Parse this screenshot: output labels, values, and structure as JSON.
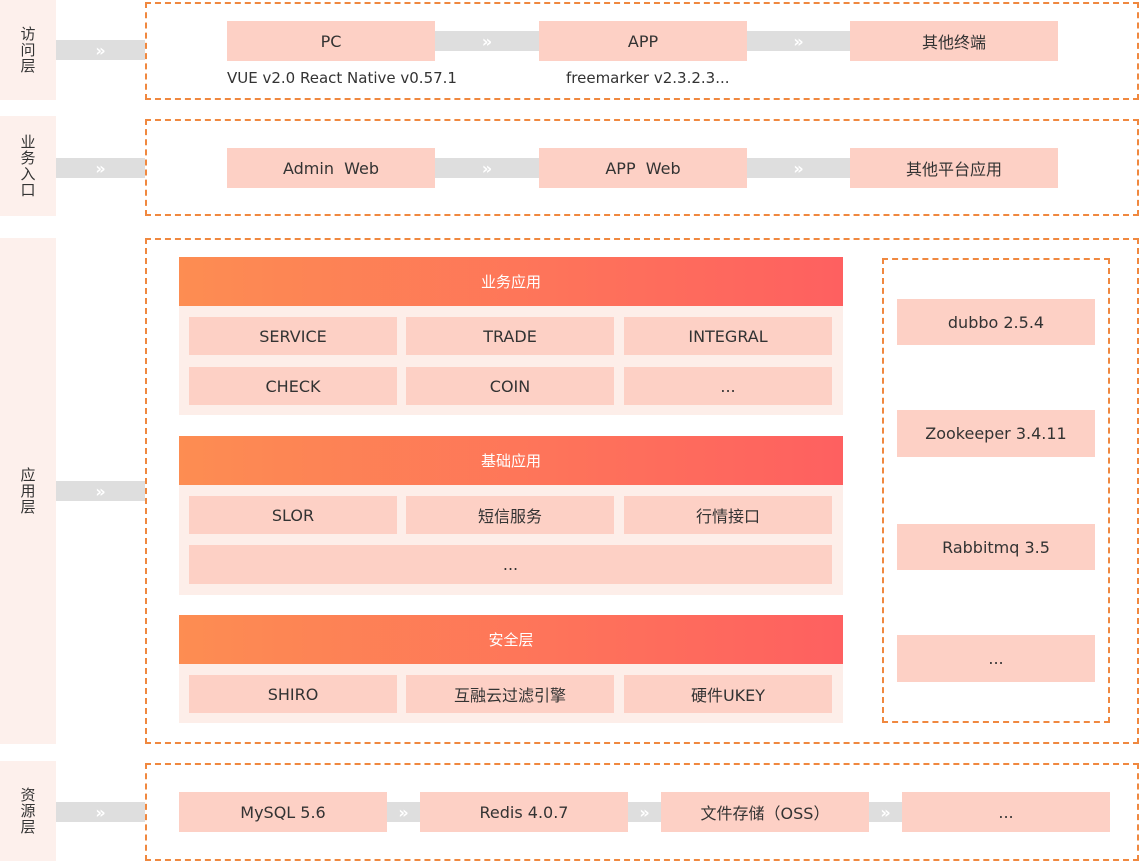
{
  "layers": {
    "access": "访问层",
    "business_entry": "业务入口",
    "application": "应用层",
    "resource": "资源层"
  },
  "arrow_glyph": "»",
  "access": {
    "boxes": [
      "PC",
      "APP",
      "其他终端"
    ],
    "notes": [
      "VUE v2.0 React Native v0.57.1",
      "freemarker v2.3.2.3..."
    ]
  },
  "business_entry": {
    "boxes": [
      "Admin  Web",
      "APP  Web",
      "其他平台应用"
    ]
  },
  "application": {
    "business_apps": {
      "header": "业务应用",
      "items": [
        "SERVICE",
        "TRADE",
        "INTEGRAL",
        "CHECK",
        "COIN",
        "..."
      ]
    },
    "base_apps": {
      "header": "基础应用",
      "items": [
        "SLOR",
        "短信服务",
        "行情接口",
        "..."
      ]
    },
    "security": {
      "header": "安全层",
      "items": [
        "SHIRO",
        "互融云过滤引擎",
        "硬件UKEY"
      ]
    },
    "middleware": [
      "dubbo 2.5.4",
      "Zookeeper 3.4.11",
      "Rabbitmq 3.5",
      "..."
    ]
  },
  "resource": {
    "boxes": [
      "MySQL 5.6",
      "Redis 4.0.7",
      "文件存储（OSS）",
      "..."
    ]
  }
}
